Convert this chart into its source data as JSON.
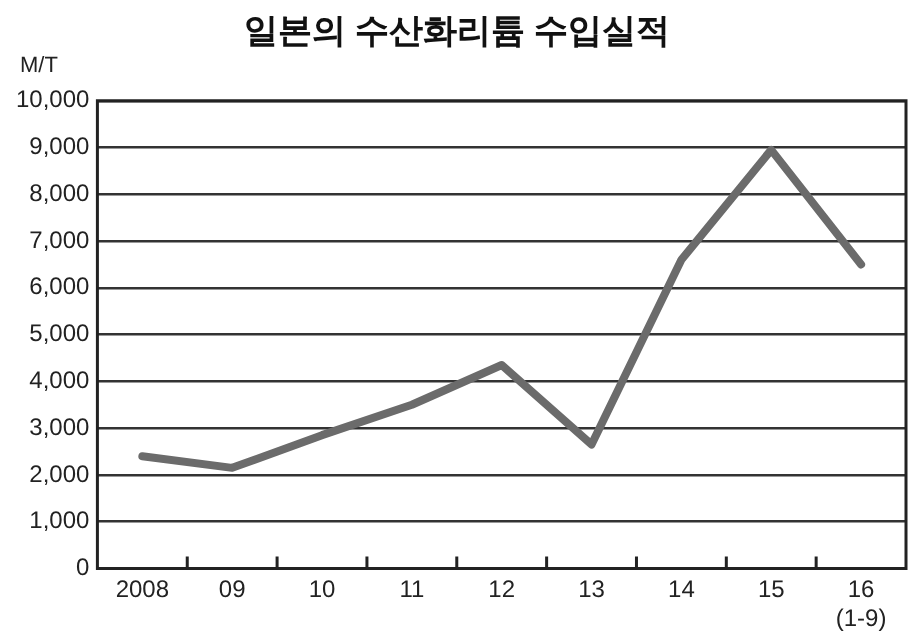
{
  "chart_data": {
    "type": "line",
    "title": "일본의 수산화리튬 수입실적",
    "ylabel": "M/T",
    "categories": [
      "2008",
      "09",
      "10",
      "11",
      "12",
      "13",
      "14",
      "15",
      "16 (1-9)"
    ],
    "series": [
      {
        "color": "#6b6b6b",
        "values": [
          2400,
          2150,
          2850,
          3500,
          4350,
          2650,
          6600,
          8950,
          6500
        ]
      }
    ],
    "ylim": [
      0,
      10000
    ],
    "yticks": [
      0,
      {
        "value": 1000,
        "label": "1,000"
      },
      {
        "value": 2000,
        "label": "2,000"
      },
      {
        "value": 3000,
        "label": "3,000"
      },
      {
        "value": 4000,
        "label": "4,000"
      },
      {
        "value": 5000,
        "label": "5,000"
      },
      {
        "value": 6000,
        "label": "6,000"
      },
      {
        "value": 7000,
        "label": "7,000"
      },
      {
        "value": 8000,
        "label": "8,000"
      },
      {
        "value": 9000,
        "label": "9,000"
      },
      {
        "value": 10000,
        "label": "10,000"
      }
    ],
    "grid": "y",
    "legend": false,
    "marker": "none",
    "line_style": "solid"
  }
}
